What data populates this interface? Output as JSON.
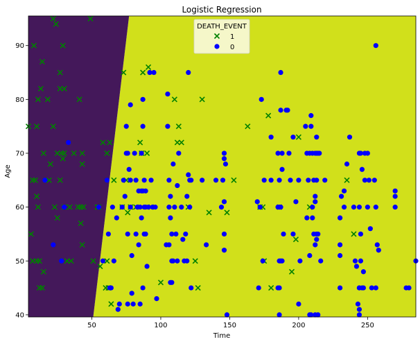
{
  "chart_data": {
    "type": "scatter",
    "title": "Logistic Regression",
    "xlabel": "Time",
    "ylabel": "Age",
    "xlim": [
      4,
      285
    ],
    "ylim": [
      39.6,
      95.5
    ],
    "xticks": [
      50,
      100,
      150,
      200,
      250
    ],
    "yticks": [
      40,
      50,
      60,
      70,
      80,
      90
    ],
    "grid": false,
    "legend": {
      "title": "DEATH_EVENT",
      "placement": "top-center"
    },
    "decision_regions": {
      "class_1_color": "#44185a",
      "class_0_color": "#d1e01b",
      "boundary": [
        {
          "x": 51,
          "y": 39.6
        },
        {
          "x": 77,
          "y": 95.5
        }
      ]
    },
    "series": [
      {
        "name": "1",
        "marker": "x",
        "color": "#008000",
        "points": [
          [
            4,
            75
          ],
          [
            6,
            55
          ],
          [
            7,
            65
          ],
          [
            7,
            50
          ],
          [
            8,
            90
          ],
          [
            9,
            65
          ],
          [
            10,
            75
          ],
          [
            10,
            50
          ],
          [
            10,
            62
          ],
          [
            11,
            60
          ],
          [
            11,
            80
          ],
          [
            12,
            45
          ],
          [
            12,
            50
          ],
          [
            14,
            87
          ],
          [
            13,
            82
          ],
          [
            14,
            45
          ],
          [
            15,
            70
          ],
          [
            15,
            48
          ],
          [
            18,
            80
          ],
          [
            19,
            65
          ],
          [
            20,
            68
          ],
          [
            22,
            95
          ],
          [
            22,
            75
          ],
          [
            23,
            60
          ],
          [
            24,
            94
          ],
          [
            25,
            58
          ],
          [
            25,
            70
          ],
          [
            27,
            82
          ],
          [
            27,
            85
          ],
          [
            27,
            65
          ],
          [
            28,
            70
          ],
          [
            29,
            90
          ],
          [
            29,
            69
          ],
          [
            30,
            82
          ],
          [
            30,
            70
          ],
          [
            30,
            60
          ],
          [
            32,
            50
          ],
          [
            34,
            60
          ],
          [
            35,
            50
          ],
          [
            37,
            70
          ],
          [
            40,
            60
          ],
          [
            41,
            80
          ],
          [
            42,
            57
          ],
          [
            42,
            60
          ],
          [
            43,
            53
          ],
          [
            43,
            68
          ],
          [
            43,
            70
          ],
          [
            44,
            60
          ],
          [
            49,
            95
          ],
          [
            51,
            50
          ],
          [
            54,
            60
          ],
          [
            55,
            60
          ],
          [
            56,
            49
          ],
          [
            58,
            72
          ],
          [
            60,
            45
          ],
          [
            61,
            70
          ],
          [
            61,
            50
          ],
          [
            62,
            45
          ],
          [
            63,
            72
          ],
          [
            64,
            42
          ],
          [
            66,
            65
          ],
          [
            72,
            60
          ],
          [
            73,
            85
          ],
          [
            75,
            65
          ],
          [
            76,
            59
          ],
          [
            78,
            60
          ],
          [
            82,
            60
          ],
          [
            85,
            72
          ],
          [
            86,
            70
          ],
          [
            87,
            85
          ],
          [
            90,
            70
          ],
          [
            91,
            86
          ],
          [
            93,
            60
          ],
          [
            100,
            46
          ],
          [
            110,
            80
          ],
          [
            112,
            72
          ],
          [
            113,
            75
          ],
          [
            115,
            72
          ],
          [
            120,
            60
          ],
          [
            125,
            50
          ],
          [
            127,
            45
          ],
          [
            130,
            80
          ],
          [
            135,
            59
          ],
          [
            148,
            59
          ],
          [
            153,
            65
          ],
          [
            163,
            75
          ],
          [
            172,
            60
          ],
          [
            174,
            60
          ],
          [
            175,
            50
          ],
          [
            178,
            77
          ],
          [
            180,
            45
          ],
          [
            186,
            60
          ],
          [
            195,
            48
          ],
          [
            198,
            54
          ],
          [
            200,
            73
          ],
          [
            208,
            60
          ],
          [
            235,
            65
          ],
          [
            240,
            55
          ]
        ]
      },
      {
        "name": "0",
        "marker": "o",
        "color": "#0000ff",
        "points": [
          [
            16,
            65
          ],
          [
            22,
            53
          ],
          [
            28,
            50
          ],
          [
            30,
            60
          ],
          [
            33,
            72
          ],
          [
            55,
            60
          ],
          [
            58,
            50
          ],
          [
            61,
            65
          ],
          [
            62,
            55
          ],
          [
            63,
            45
          ],
          [
            64,
            45
          ],
          [
            65,
            60
          ],
          [
            66,
            50
          ],
          [
            68,
            58
          ],
          [
            69,
            41
          ],
          [
            70,
            42
          ],
          [
            72,
            60
          ],
          [
            73,
            65
          ],
          [
            74,
            62
          ],
          [
            75,
            75
          ],
          [
            75,
            70
          ],
          [
            76,
            42
          ],
          [
            76,
            70
          ],
          [
            76,
            55
          ],
          [
            77,
            67
          ],
          [
            78,
            79
          ],
          [
            78,
            65
          ],
          [
            78,
            60
          ],
          [
            79,
            51
          ],
          [
            79,
            44
          ],
          [
            80,
            42
          ],
          [
            81,
            70
          ],
          [
            82,
            65
          ],
          [
            82,
            55
          ],
          [
            83,
            60
          ],
          [
            84,
            63
          ],
          [
            84,
            53
          ],
          [
            85,
            60
          ],
          [
            85,
            42
          ],
          [
            86,
            70
          ],
          [
            86,
            63
          ],
          [
            86,
            58
          ],
          [
            87,
            63
          ],
          [
            87,
            45
          ],
          [
            87,
            80
          ],
          [
            87,
            75
          ],
          [
            88,
            65
          ],
          [
            88,
            60
          ],
          [
            88,
            55
          ],
          [
            89,
            60
          ],
          [
            89,
            55
          ],
          [
            89,
            63
          ],
          [
            90,
            49
          ],
          [
            91,
            60
          ],
          [
            92,
            85
          ],
          [
            93,
            65
          ],
          [
            94,
            60
          ],
          [
            95,
            85
          ],
          [
            96,
            60
          ],
          [
            97,
            43
          ],
          [
            104,
            53
          ],
          [
            105,
            81
          ],
          [
            105,
            75
          ],
          [
            106,
            60
          ],
          [
            106,
            53
          ],
          [
            106,
            65
          ],
          [
            107,
            62
          ],
          [
            107,
            58
          ],
          [
            107,
            46
          ],
          [
            108,
            50
          ],
          [
            108,
            55
          ],
          [
            108,
            46
          ],
          [
            109,
            68
          ],
          [
            109,
            50
          ],
          [
            110,
            60
          ],
          [
            111,
            55
          ],
          [
            112,
            50
          ],
          [
            112,
            64
          ],
          [
            113,
            70
          ],
          [
            115,
            60
          ],
          [
            116,
            54
          ],
          [
            117,
            50
          ],
          [
            118,
            55
          ],
          [
            119,
            50
          ],
          [
            119,
            62
          ],
          [
            120,
            66
          ],
          [
            120,
            85
          ],
          [
            121,
            65
          ],
          [
            121,
            60
          ],
          [
            122,
            45
          ],
          [
            122,
            65
          ],
          [
            130,
            65
          ],
          [
            133,
            53
          ],
          [
            140,
            65
          ],
          [
            144,
            60
          ],
          [
            145,
            65
          ],
          [
            146,
            70
          ],
          [
            146,
            61
          ],
          [
            146,
            55
          ],
          [
            146,
            52
          ],
          [
            146,
            69
          ],
          [
            147,
            68
          ],
          [
            148,
            40
          ],
          [
            170,
            61
          ],
          [
            171,
            45
          ],
          [
            172,
            60
          ],
          [
            173,
            80
          ],
          [
            174,
            50
          ],
          [
            175,
            65
          ],
          [
            180,
            65
          ],
          [
            180,
            73
          ],
          [
            185,
            45
          ],
          [
            185,
            70
          ],
          [
            185,
            60
          ],
          [
            186,
            60
          ],
          [
            186,
            50
          ],
          [
            186,
            60
          ],
          [
            186,
            45
          ],
          [
            186,
            40
          ],
          [
            186,
            65
          ],
          [
            187,
            60
          ],
          [
            187,
            78
          ],
          [
            187,
            50
          ],
          [
            187,
            85
          ],
          [
            188,
            70
          ],
          [
            188,
            67
          ],
          [
            188,
            50
          ],
          [
            189,
            55
          ],
          [
            191,
            78
          ],
          [
            192,
            78
          ],
          [
            193,
            70
          ],
          [
            194,
            65
          ],
          [
            196,
            73
          ],
          [
            196,
            55
          ],
          [
            198,
            61
          ],
          [
            200,
            65
          ],
          [
            200,
            42
          ],
          [
            201,
            50
          ],
          [
            205,
            75
          ],
          [
            206,
            70
          ],
          [
            206,
            58
          ],
          [
            207,
            65
          ],
          [
            208,
            70
          ],
          [
            208,
            51
          ],
          [
            208,
            40
          ],
          [
            209,
            40
          ],
          [
            209,
            77
          ],
          [
            209,
            75
          ],
          [
            210,
            60
          ],
          [
            210,
            70
          ],
          [
            210,
            58
          ],
          [
            211,
            55
          ],
          [
            211,
            65
          ],
          [
            212,
            70
          ],
          [
            212,
            53
          ],
          [
            212,
            40
          ],
          [
            212,
            61
          ],
          [
            212,
            62
          ],
          [
            213,
            70
          ],
          [
            213,
            65
          ],
          [
            213,
            73
          ],
          [
            213,
            54
          ],
          [
            213,
            55
          ],
          [
            214,
            70
          ],
          [
            214,
            55
          ],
          [
            214,
            40
          ],
          [
            215,
            70
          ],
          [
            216,
            50
          ],
          [
            219,
            65
          ],
          [
            230,
            58
          ],
          [
            230,
            51
          ],
          [
            230,
            45
          ],
          [
            230,
            53
          ],
          [
            231,
            62
          ],
          [
            233,
            60
          ],
          [
            233,
            63
          ],
          [
            235,
            68
          ],
          [
            237,
            73
          ],
          [
            240,
            60
          ],
          [
            241,
            50
          ],
          [
            242,
            49
          ],
          [
            243,
            42
          ],
          [
            244,
            45
          ],
          [
            244,
            70
          ],
          [
            244,
            40
          ],
          [
            244,
            45
          ],
          [
            244,
            41
          ],
          [
            244,
            60
          ],
          [
            245,
            50
          ],
          [
            245,
            70
          ],
          [
            245,
            55
          ],
          [
            246,
            45
          ],
          [
            246,
            67
          ],
          [
            247,
            48
          ],
          [
            247,
            45
          ],
          [
            248,
            65
          ],
          [
            248,
            70
          ],
          [
            250,
            70
          ],
          [
            250,
            60
          ],
          [
            251,
            65
          ],
          [
            252,
            56
          ],
          [
            253,
            45
          ],
          [
            255,
            65
          ],
          [
            256,
            90
          ],
          [
            256,
            45
          ],
          [
            256,
            60
          ],
          [
            257,
            53
          ],
          [
            258,
            52
          ],
          [
            270,
            60
          ],
          [
            270,
            63
          ],
          [
            270,
            62
          ],
          [
            278,
            45
          ],
          [
            280,
            45
          ],
          [
            285,
            50
          ]
        ]
      }
    ]
  }
}
